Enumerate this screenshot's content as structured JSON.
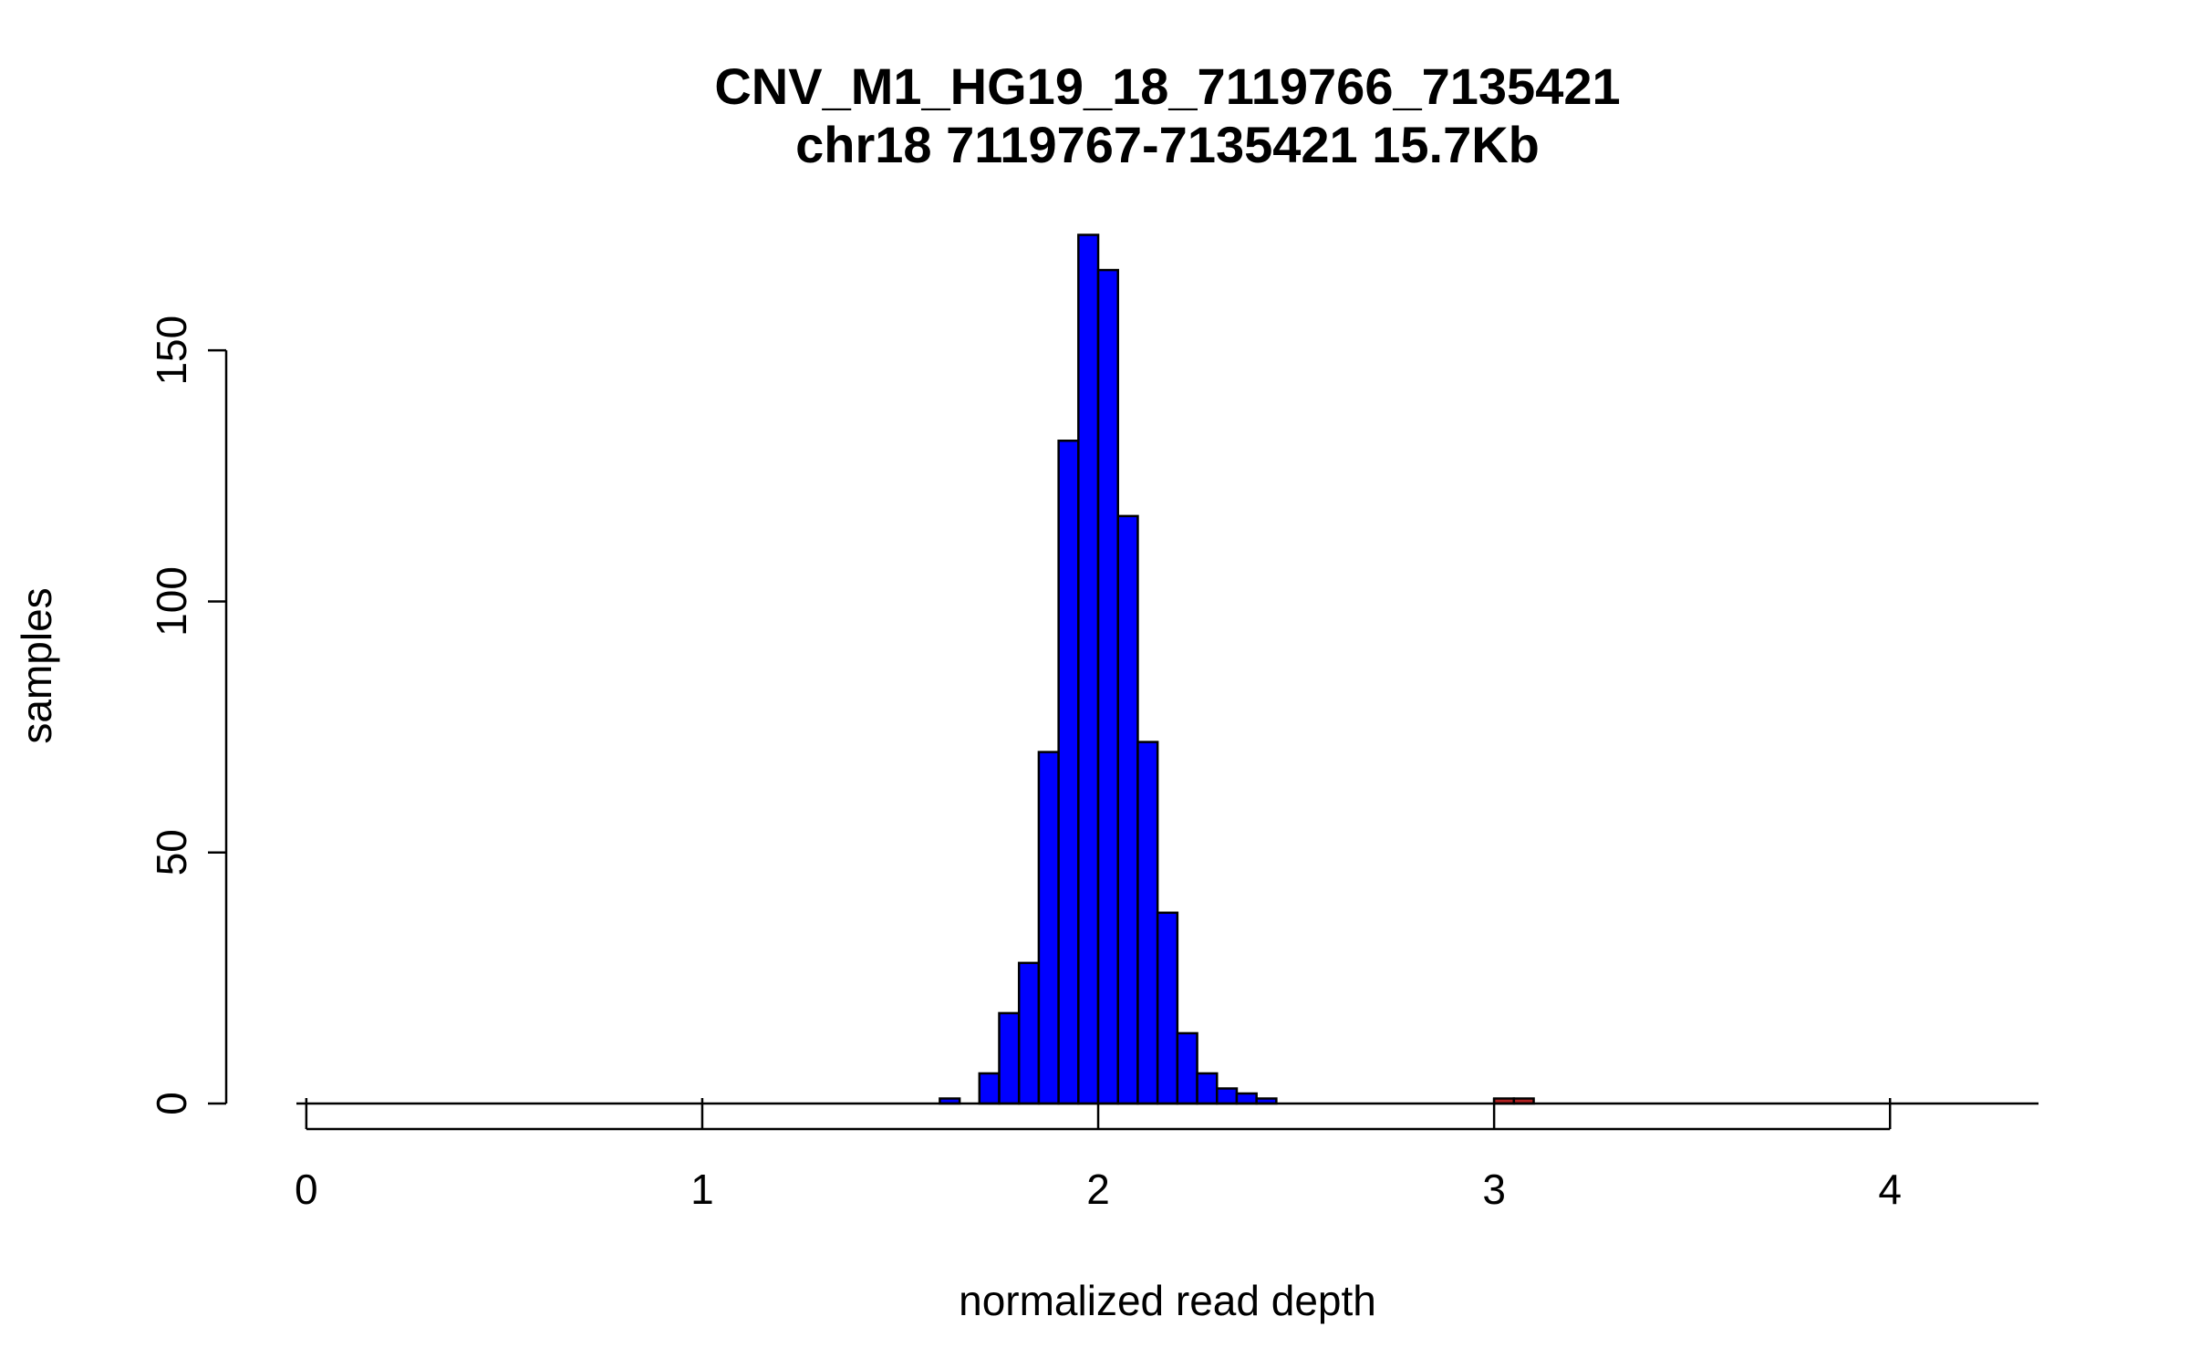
{
  "chart_data": {
    "type": "bar",
    "title": "CNV_M1_HG19_18_7119766_7135421",
    "subtitle": "chr18 7119767-7135421 15.7Kb",
    "xlabel": "normalized read depth",
    "ylabel": "samples",
    "xlim": [
      -0.025,
      4.375
    ],
    "ylim": [
      0,
      178
    ],
    "x_ticks": [
      0,
      1,
      2,
      3,
      4
    ],
    "y_ticks": [
      0,
      50,
      100,
      150
    ],
    "bin_width": 0.05,
    "colors": {
      "main": "#0000ff",
      "highlight": "#b22222",
      "outline": "#000000"
    },
    "series": [
      {
        "name": "samples",
        "bins": [
          {
            "x0": 1.55,
            "x1": 1.6,
            "count": 0
          },
          {
            "x0": 1.6,
            "x1": 1.65,
            "count": 1
          },
          {
            "x0": 1.65,
            "x1": 1.7,
            "count": 0
          },
          {
            "x0": 1.7,
            "x1": 1.75,
            "count": 6
          },
          {
            "x0": 1.75,
            "x1": 1.8,
            "count": 18
          },
          {
            "x0": 1.8,
            "x1": 1.85,
            "count": 28
          },
          {
            "x0": 1.85,
            "x1": 1.9,
            "count": 70
          },
          {
            "x0": 1.9,
            "x1": 1.95,
            "count": 132
          },
          {
            "x0": 1.95,
            "x1": 2.0,
            "count": 173
          },
          {
            "x0": 2.0,
            "x1": 2.05,
            "count": 166
          },
          {
            "x0": 2.05,
            "x1": 2.1,
            "count": 117
          },
          {
            "x0": 2.1,
            "x1": 2.15,
            "count": 72
          },
          {
            "x0": 2.15,
            "x1": 2.2,
            "count": 38
          },
          {
            "x0": 2.2,
            "x1": 2.25,
            "count": 14
          },
          {
            "x0": 2.25,
            "x1": 2.3,
            "count": 6
          },
          {
            "x0": 2.3,
            "x1": 2.35,
            "count": 3
          },
          {
            "x0": 2.35,
            "x1": 2.4,
            "count": 2
          },
          {
            "x0": 2.4,
            "x1": 2.45,
            "count": 1
          }
        ]
      },
      {
        "name": "highlighted",
        "bins": [
          {
            "x0": 3.0,
            "x1": 3.05,
            "count": 1
          },
          {
            "x0": 3.05,
            "x1": 3.1,
            "count": 1
          }
        ]
      }
    ]
  }
}
